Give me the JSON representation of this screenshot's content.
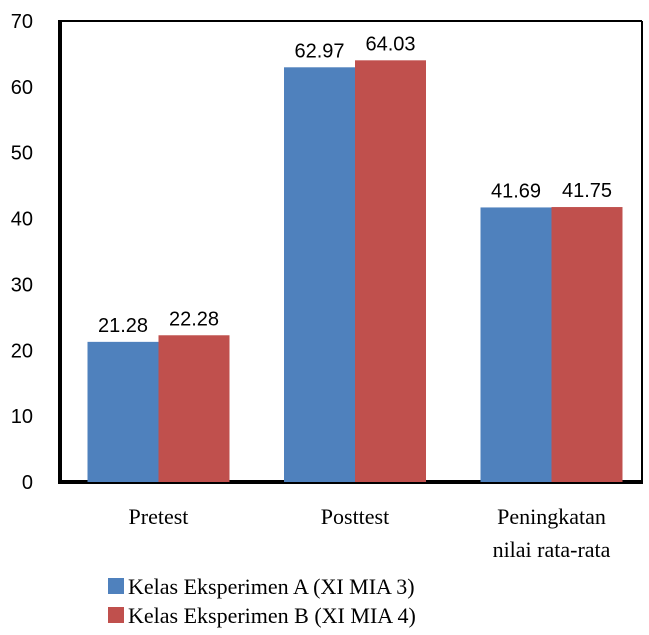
{
  "chart_data": {
    "type": "bar",
    "categories": [
      [
        "Pretest"
      ],
      [
        "Posttest"
      ],
      [
        "Peningkatan",
        "nilai rata-rata"
      ]
    ],
    "series": [
      {
        "name": "Kelas Eksperimen A (XI MIA 3)",
        "color": "#4F81BD",
        "values": [
          21.28,
          62.97,
          41.69
        ],
        "labels": [
          "21.28",
          "62.97",
          "41.69"
        ]
      },
      {
        "name": "Kelas Eksperimen B (XI MIA 4)",
        "color": "#C0504D",
        "values": [
          22.28,
          64.03,
          41.75
        ],
        "labels": [
          "22.28",
          "64.03",
          "41.75"
        ]
      }
    ],
    "ylim": [
      0,
      70
    ],
    "yticks": [
      0,
      10,
      20,
      30,
      40,
      50,
      60,
      70
    ],
    "ytick_labels": [
      "0",
      "10",
      "20",
      "30",
      "40",
      "50",
      "60",
      "70"
    ],
    "grid": false,
    "legend_position": "bottom-center",
    "title": "",
    "xlabel": "",
    "ylabel": ""
  }
}
